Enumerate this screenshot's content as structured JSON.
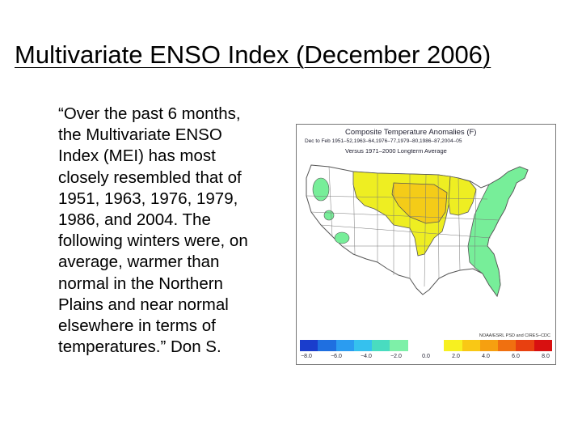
{
  "slide": {
    "title": "Multivariate ENSO Index (December 2006)",
    "body_lines": [
      "“Over the past 6 months,",
      "the Multivariate ENSO",
      "Index (MEI) has most",
      "closely resembled that of",
      "1951, 1963, 1976, 1979,",
      "1986, and 2004. The",
      "following winters were, on",
      "average, warmer than",
      "normal in the Northern",
      "Plains and near normal",
      "elsewhere in terms of",
      "temperatures.”  Don S."
    ]
  },
  "map": {
    "title": "Composite Temperature Anomalies (F)",
    "subtitle_1": "Dec to Feb 1951–52,1963–64,1976–77,1979–80,1986–87,2004–05",
    "subtitle_2": "Versus 1971–2000 Longterm Average",
    "credit": "NOAA/ESRL PSD and CIRES–CDC",
    "scale_colors": [
      "#1a3dcc",
      "#1f6fe0",
      "#2b9cf0",
      "#35c1ee",
      "#49dcc0",
      "#7ef0a8",
      "#ffffff",
      "#ffffff",
      "#f7f020",
      "#f9c815",
      "#f6a010",
      "#f07010",
      "#e84010",
      "#d81010"
    ],
    "scale_ticks": [
      "−8.0",
      "−6.0",
      "−4.0",
      "−2.0",
      "0.0",
      "2.0",
      "4.0",
      "6.0",
      "8.0"
    ],
    "colors": {
      "warm_yellow": "#eeee22",
      "warm_orange": "#f4cc18",
      "cool_green": "#77ee99",
      "neutral": "#ffffff",
      "outline": "#555555"
    }
  }
}
